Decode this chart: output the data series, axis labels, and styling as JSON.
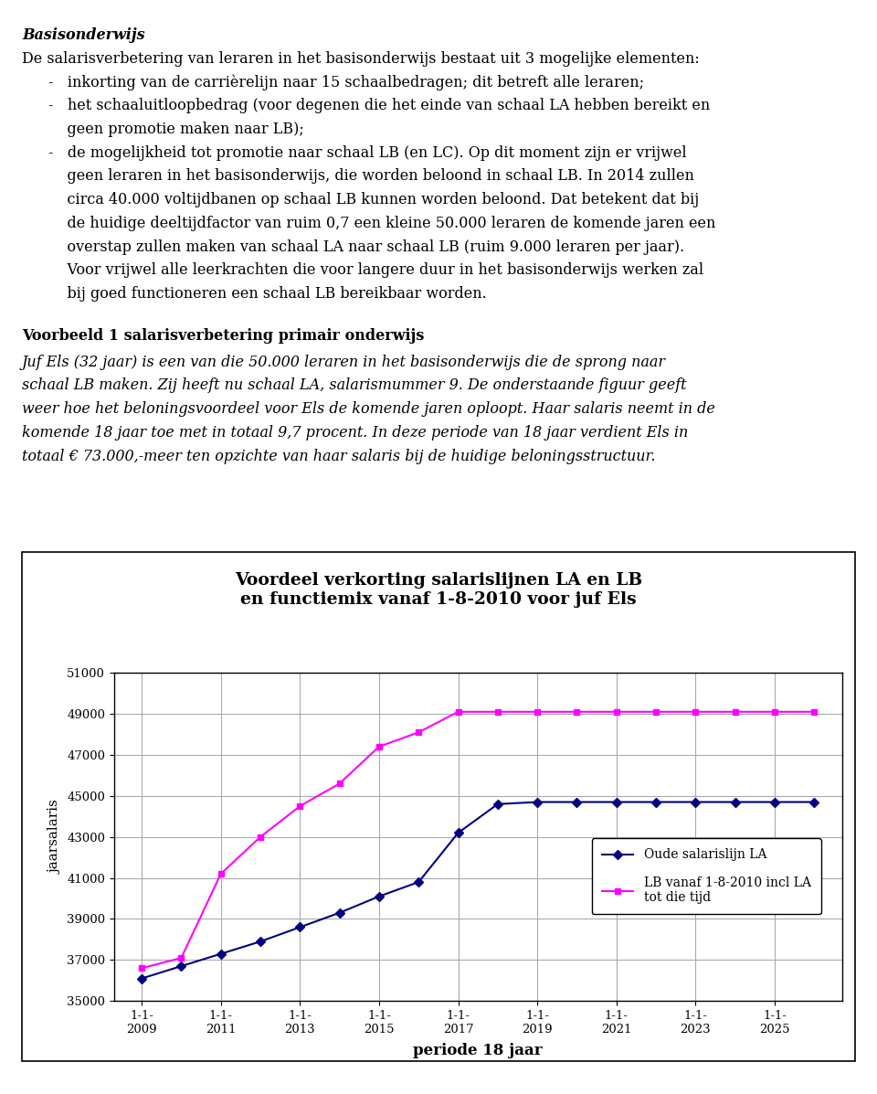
{
  "title_line1": "Voordeel verkorting salarislijnen LA en LB",
  "title_line2": "en functiemix vanaf 1-8-2010 voor juf Els",
  "xlabel": "periode 18 jaar",
  "ylabel": "jaarsalaris",
  "ylim": [
    35000,
    51000
  ],
  "yticks": [
    35000,
    37000,
    39000,
    41000,
    43000,
    45000,
    47000,
    49000,
    51000
  ],
  "xtick_labels": [
    "1-1-\n2009",
    "1-1-\n2011",
    "1-1-\n2013",
    "1-1-\n2015",
    "1-1-\n2017",
    "1-1-\n2019",
    "1-1-\n2021",
    "1-1-\n2023",
    "1-1-\n2025"
  ],
  "xtick_positions": [
    2009,
    2011,
    2013,
    2015,
    2017,
    2019,
    2021,
    2023,
    2025
  ],
  "line1_label": "Oude salarislijn LA",
  "line1_color": "#000080",
  "line1_marker": "D",
  "line1_x": [
    2009,
    2010,
    2011,
    2012,
    2013,
    2014,
    2015,
    2016,
    2017,
    2018,
    2019,
    2020,
    2021,
    2022,
    2023,
    2024,
    2025,
    2026
  ],
  "line1_y": [
    36100,
    36700,
    37300,
    37900,
    38600,
    39300,
    40100,
    40800,
    43200,
    44600,
    44700,
    44700,
    44700,
    44700,
    44700,
    44700,
    44700,
    44700
  ],
  "line2_label": "LB vanaf 1-8-2010 incl LA\ntot die tijd",
  "line2_color": "#FF00FF",
  "line2_marker": "s",
  "line2_x": [
    2009,
    2010,
    2011,
    2012,
    2013,
    2014,
    2015,
    2016,
    2017,
    2018,
    2019,
    2020,
    2021,
    2022,
    2023,
    2024,
    2025,
    2026
  ],
  "line2_y": [
    36600,
    37100,
    41200,
    43000,
    44500,
    45600,
    47400,
    48100,
    49100,
    49100,
    49100,
    49100,
    49100,
    49100,
    49100,
    49100,
    49100,
    49100
  ],
  "background_color": "#ffffff",
  "chart_background": "#ffffff",
  "grid_color": "#aaaaaa",
  "border_color": "#000000",
  "text_fontsize": 11.5,
  "title_fontsize": 13.5
}
